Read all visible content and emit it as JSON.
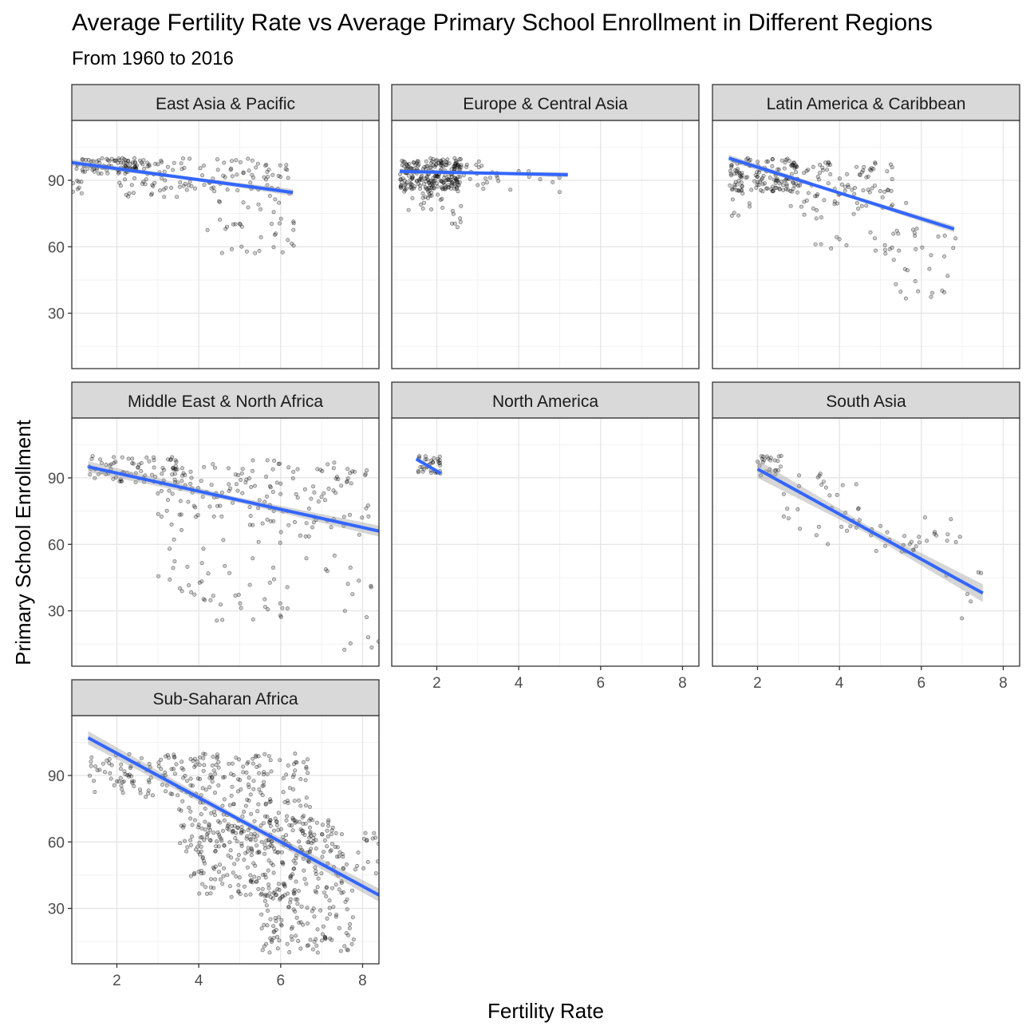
{
  "chart_data": {
    "type": "scatter",
    "title": "Average Fertility Rate vs Average Primary School Enrollment in Different Regions",
    "subtitle": "From 1960 to 2016",
    "xlabel": "Fertility Rate",
    "ylabel": "Primary School Enrollment",
    "xlim": [
      0.9,
      8.4
    ],
    "ylim": [
      5,
      117
    ],
    "x_ticks": [
      2,
      4,
      6,
      8
    ],
    "y_ticks": [
      30,
      60,
      90
    ],
    "grid": true,
    "facets": [
      {
        "name": "East Asia & Pacific",
        "fit_line": {
          "x": [
            0.9,
            6.3
          ],
          "y": [
            98,
            84.5
          ],
          "se": 1.5
        },
        "point_clusters": [
          {
            "x": [
              1.0,
              2.8
            ],
            "y": [
              93,
              100
            ],
            "n": 90
          },
          {
            "x": [
              2.0,
              3.5
            ],
            "y": [
              82,
              99
            ],
            "n": 50
          },
          {
            "x": [
              3.5,
              6.2
            ],
            "y": [
              85,
              100
            ],
            "n": 70
          },
          {
            "x": [
              4.2,
              6.4
            ],
            "y": [
              57,
              85
            ],
            "n": 40
          },
          {
            "x": [
              0.9,
              1.3
            ],
            "y": [
              84,
              90
            ],
            "n": 8
          }
        ]
      },
      {
        "name": "Europe & Central Asia",
        "fit_line": {
          "x": [
            1.1,
            5.2
          ],
          "y": [
            94,
            92.5
          ],
          "se": 1.2
        },
        "point_clusters": [
          {
            "x": [
              1.1,
              2.6
            ],
            "y": [
              86,
              100
            ],
            "n": 200
          },
          {
            "x": [
              1.2,
              2.2
            ],
            "y": [
              76,
              92
            ],
            "n": 40
          },
          {
            "x": [
              2.2,
              3.6
            ],
            "y": [
              85,
              99
            ],
            "n": 35
          },
          {
            "x": [
              2.3,
              2.6
            ],
            "y": [
              68,
              79
            ],
            "n": 8
          },
          {
            "x": [
              3.5,
              5.2
            ],
            "y": [
              84,
              98
            ],
            "n": 8
          }
        ]
      },
      {
        "name": "Latin America & Caribbean",
        "fit_line": {
          "x": [
            1.3,
            6.8
          ],
          "y": [
            100,
            68
          ],
          "se": 1.5
        },
        "point_clusters": [
          {
            "x": [
              1.3,
              3.0
            ],
            "y": [
              85,
              100
            ],
            "n": 140
          },
          {
            "x": [
              2.8,
              5.3
            ],
            "y": [
              78,
              100
            ],
            "n": 80
          },
          {
            "x": [
              3.0,
              6.2
            ],
            "y": [
              58,
              80
            ],
            "n": 30
          },
          {
            "x": [
              5.0,
              6.9
            ],
            "y": [
              36,
              66
            ],
            "n": 25
          },
          {
            "x": [
              1.3,
              2.0
            ],
            "y": [
              74,
              86
            ],
            "n": 8
          }
        ]
      },
      {
        "name": "Middle East & North Africa",
        "fit_line": {
          "x": [
            1.3,
            8.4
          ],
          "y": [
            95,
            66
          ],
          "se": 2.5
        },
        "point_clusters": [
          {
            "x": [
              1.3,
              3.5
            ],
            "y": [
              88,
              100
            ],
            "n": 70
          },
          {
            "x": [
              3.0,
              8.2
            ],
            "y": [
              70,
              98
            ],
            "n": 150
          },
          {
            "x": [
              3.0,
              8.0
            ],
            "y": [
              44,
              70
            ],
            "n": 40
          },
          {
            "x": [
              3.5,
              6.3
            ],
            "y": [
              25,
              44
            ],
            "n": 30
          },
          {
            "x": [
              7.5,
              8.4
            ],
            "y": [
              12,
              50
            ],
            "n": 12
          }
        ]
      },
      {
        "name": "North America",
        "fit_line": {
          "x": [
            1.5,
            2.1
          ],
          "y": [
            98.5,
            92
          ],
          "se": 1.0
        },
        "point_clusters": [
          {
            "x": [
              1.5,
              2.1
            ],
            "y": [
              92,
              100
            ],
            "n": 35
          }
        ]
      },
      {
        "name": "South Asia",
        "fit_line": {
          "x": [
            2.0,
            7.5
          ],
          "y": [
            94,
            38
          ],
          "se": 4.0
        },
        "point_clusters": [
          {
            "x": [
              2.0,
              2.6
            ],
            "y": [
              90,
              100
            ],
            "n": 25
          },
          {
            "x": [
              2.5,
              4.5
            ],
            "y": [
              60,
              92
            ],
            "n": 30
          },
          {
            "x": [
              4.0,
              6.0
            ],
            "y": [
              55,
              70
            ],
            "n": 20
          },
          {
            "x": [
              6.0,
              7.0
            ],
            "y": [
              60,
              78
            ],
            "n": 10
          },
          {
            "x": [
              6.5,
              7.6
            ],
            "y": [
              22,
              50
            ],
            "n": 6
          }
        ]
      },
      {
        "name": "Sub-Saharan Africa",
        "fit_line": {
          "x": [
            1.3,
            8.4
          ],
          "y": [
            107,
            36
          ],
          "se": 3.0
        },
        "point_clusters": [
          {
            "x": [
              1.3,
              3.5
            ],
            "y": [
              80,
              100
            ],
            "n": 80
          },
          {
            "x": [
              3.5,
              6.8
            ],
            "y": [
              55,
              100
            ],
            "n": 250
          },
          {
            "x": [
              3.8,
              7.5
            ],
            "y": [
              35,
              70
            ],
            "n": 250
          },
          {
            "x": [
              5.5,
              7.8
            ],
            "y": [
              10,
              40
            ],
            "n": 120
          },
          {
            "x": [
              7.5,
              8.4
            ],
            "y": [
              45,
              65
            ],
            "n": 20
          }
        ]
      }
    ]
  }
}
